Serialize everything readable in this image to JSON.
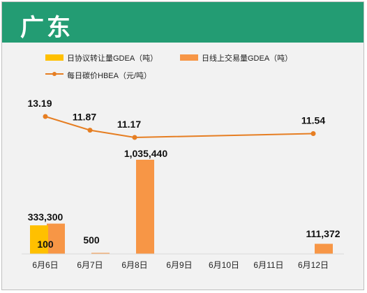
{
  "header": {
    "title": "广东"
  },
  "colors": {
    "header_bg": "#239c73",
    "agreement_bar": "#ffc000",
    "online_bar": "#f79646",
    "price_line": "#e67e22"
  },
  "chart_data": {
    "type": "bar",
    "title": "",
    "xlabel": "",
    "ylabel": "",
    "categories": [
      "6月6日",
      "6月7日",
      "6月8日",
      "6月9日",
      "6月10日",
      "6月11日",
      "6月12日"
    ],
    "series": [
      {
        "name": "日协议转让量GDEA（吨）",
        "type": "bar",
        "values": [
          100,
          null,
          null,
          null,
          null,
          null,
          null
        ]
      },
      {
        "name": "日线上交易量GDEA（吨）",
        "type": "bar",
        "values": [
          333300,
          500,
          1035440,
          null,
          null,
          null,
          111372
        ]
      },
      {
        "name": "每日碳价HBEA（元/吨）",
        "type": "line",
        "values": [
          13.19,
          11.87,
          11.17,
          null,
          null,
          null,
          11.54
        ]
      }
    ],
    "bar_labels": [
      {
        "category": "6月6日",
        "series": 1,
        "text": "333,300"
      },
      {
        "category": "6月6日",
        "series": 0,
        "text": "100"
      },
      {
        "category": "6月7日",
        "series": 1,
        "text": "500"
      },
      {
        "category": "6月8日",
        "series": 1,
        "text": "1,035,440"
      },
      {
        "category": "6月12日",
        "series": 1,
        "text": "111,372"
      }
    ],
    "line_labels": [
      "13.19",
      "11.87",
      "11.17",
      "",
      "",
      "",
      "11.54"
    ],
    "legend_position": "top-left",
    "grid": false
  }
}
